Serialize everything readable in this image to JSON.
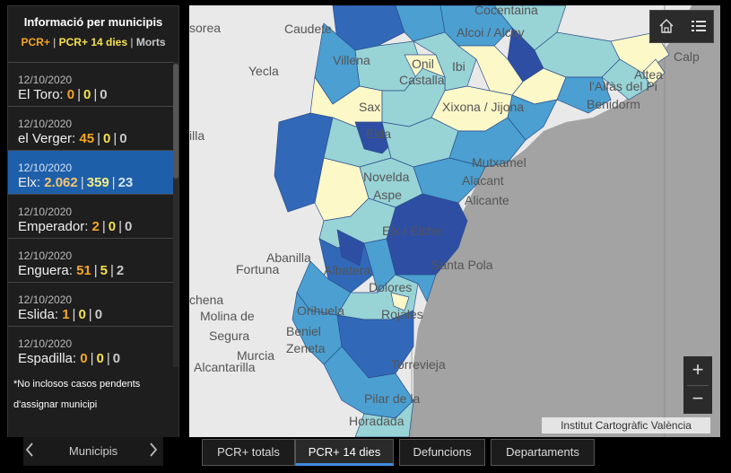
{
  "panel": {
    "title": "Informació per municipis",
    "legend": {
      "pcr": "PCR+",
      "pcr14": "PCR+ 14 dies",
      "morts": "Morts",
      "sep": "|"
    },
    "items": [
      {
        "date": "12/10/2020",
        "name": "El Toro",
        "pcr": "0",
        "pcr14": "0",
        "morts": "0"
      },
      {
        "date": "12/10/2020",
        "name": "el Verger",
        "pcr": "45",
        "pcr14": "0",
        "morts": "0"
      },
      {
        "date": "12/10/2020",
        "name": "Elx",
        "pcr": "2.062",
        "pcr14": "359",
        "morts": "23"
      },
      {
        "date": "12/10/2020",
        "name": "Emperador",
        "pcr": "2",
        "pcr14": "0",
        "morts": "0"
      },
      {
        "date": "12/10/2020",
        "name": "Enguera",
        "pcr": "51",
        "pcr14": "5",
        "morts": "2"
      },
      {
        "date": "12/10/2020",
        "name": "Eslida",
        "pcr": "1",
        "pcr14": "0",
        "morts": "0"
      },
      {
        "date": "12/10/2020",
        "name": "Espadilla",
        "pcr": "0",
        "pcr14": "0",
        "morts": "0"
      }
    ],
    "selected_index": 2,
    "note_line1": "*No inclosos casos pendents",
    "note_line2": "d'assignar municipi"
  },
  "pager": {
    "label": "Municipis",
    "prev_icon": "chevron-left-icon",
    "next_icon": "chevron-right-icon"
  },
  "map": {
    "labels": {
      "caudete": "Caudete",
      "yecla": "Yecla",
      "villena": "Villena",
      "onil": "Onil",
      "ibi": "Ibi",
      "castalla": "Castalla",
      "alcoi": "Alcoi / Alcoy",
      "cocentaina": "Cocentaina",
      "sax": "Sax",
      "xixona": "Xixona / Jijona",
      "benidorm": "Benidorm",
      "lalfas": "l'Alfàs del Pi",
      "altea": "Altea",
      "calp": "Calp",
      "elda": "Elda",
      "mutxamel": "Mutxamel",
      "novelda": "Novelda",
      "aspe": "Aspe",
      "alacant": "Alacant",
      "alicante": "Alicante",
      "elx": "Elx / Elche",
      "santapola": "Santa Pola",
      "abanilla": "Abanilla",
      "fortuna": "Fortuna",
      "albatera": "Albatera",
      "dolores": "Dolores",
      "orihuela": "Orihuela",
      "rojales": "Rojales",
      "molina": "Molina de",
      "segura": "Segura",
      "beniel": "Beniel",
      "zeneta": "Zeneta",
      "murcia": "Murcia",
      "alcantarilla": "Alcantarilla",
      "torrevieja": "Torrevieja",
      "horadada": "Horadada",
      "pilar": "Pilar de la",
      "illa": "illa",
      "chena": "chena",
      "sorea": "sorea"
    },
    "attribution": "Institut Cartogràfic València",
    "home_icon": "home-icon",
    "list_icon": "list-icon",
    "zoom_in": "+",
    "zoom_out": "−",
    "colors": {
      "land": "#ececec",
      "sea": "#a3a3a3",
      "lightest": "#fdf8c8",
      "light": "#98d3d6",
      "mid": "#4b9fd1",
      "dark": "#3268b8",
      "darkest": "#2d4ea3"
    }
  },
  "tabs": [
    {
      "label": "PCR+ totals"
    },
    {
      "label": "PCR+ 14 dies"
    },
    {
      "label": "Defuncions"
    },
    {
      "label": "Departaments"
    }
  ],
  "active_tab": 1
}
